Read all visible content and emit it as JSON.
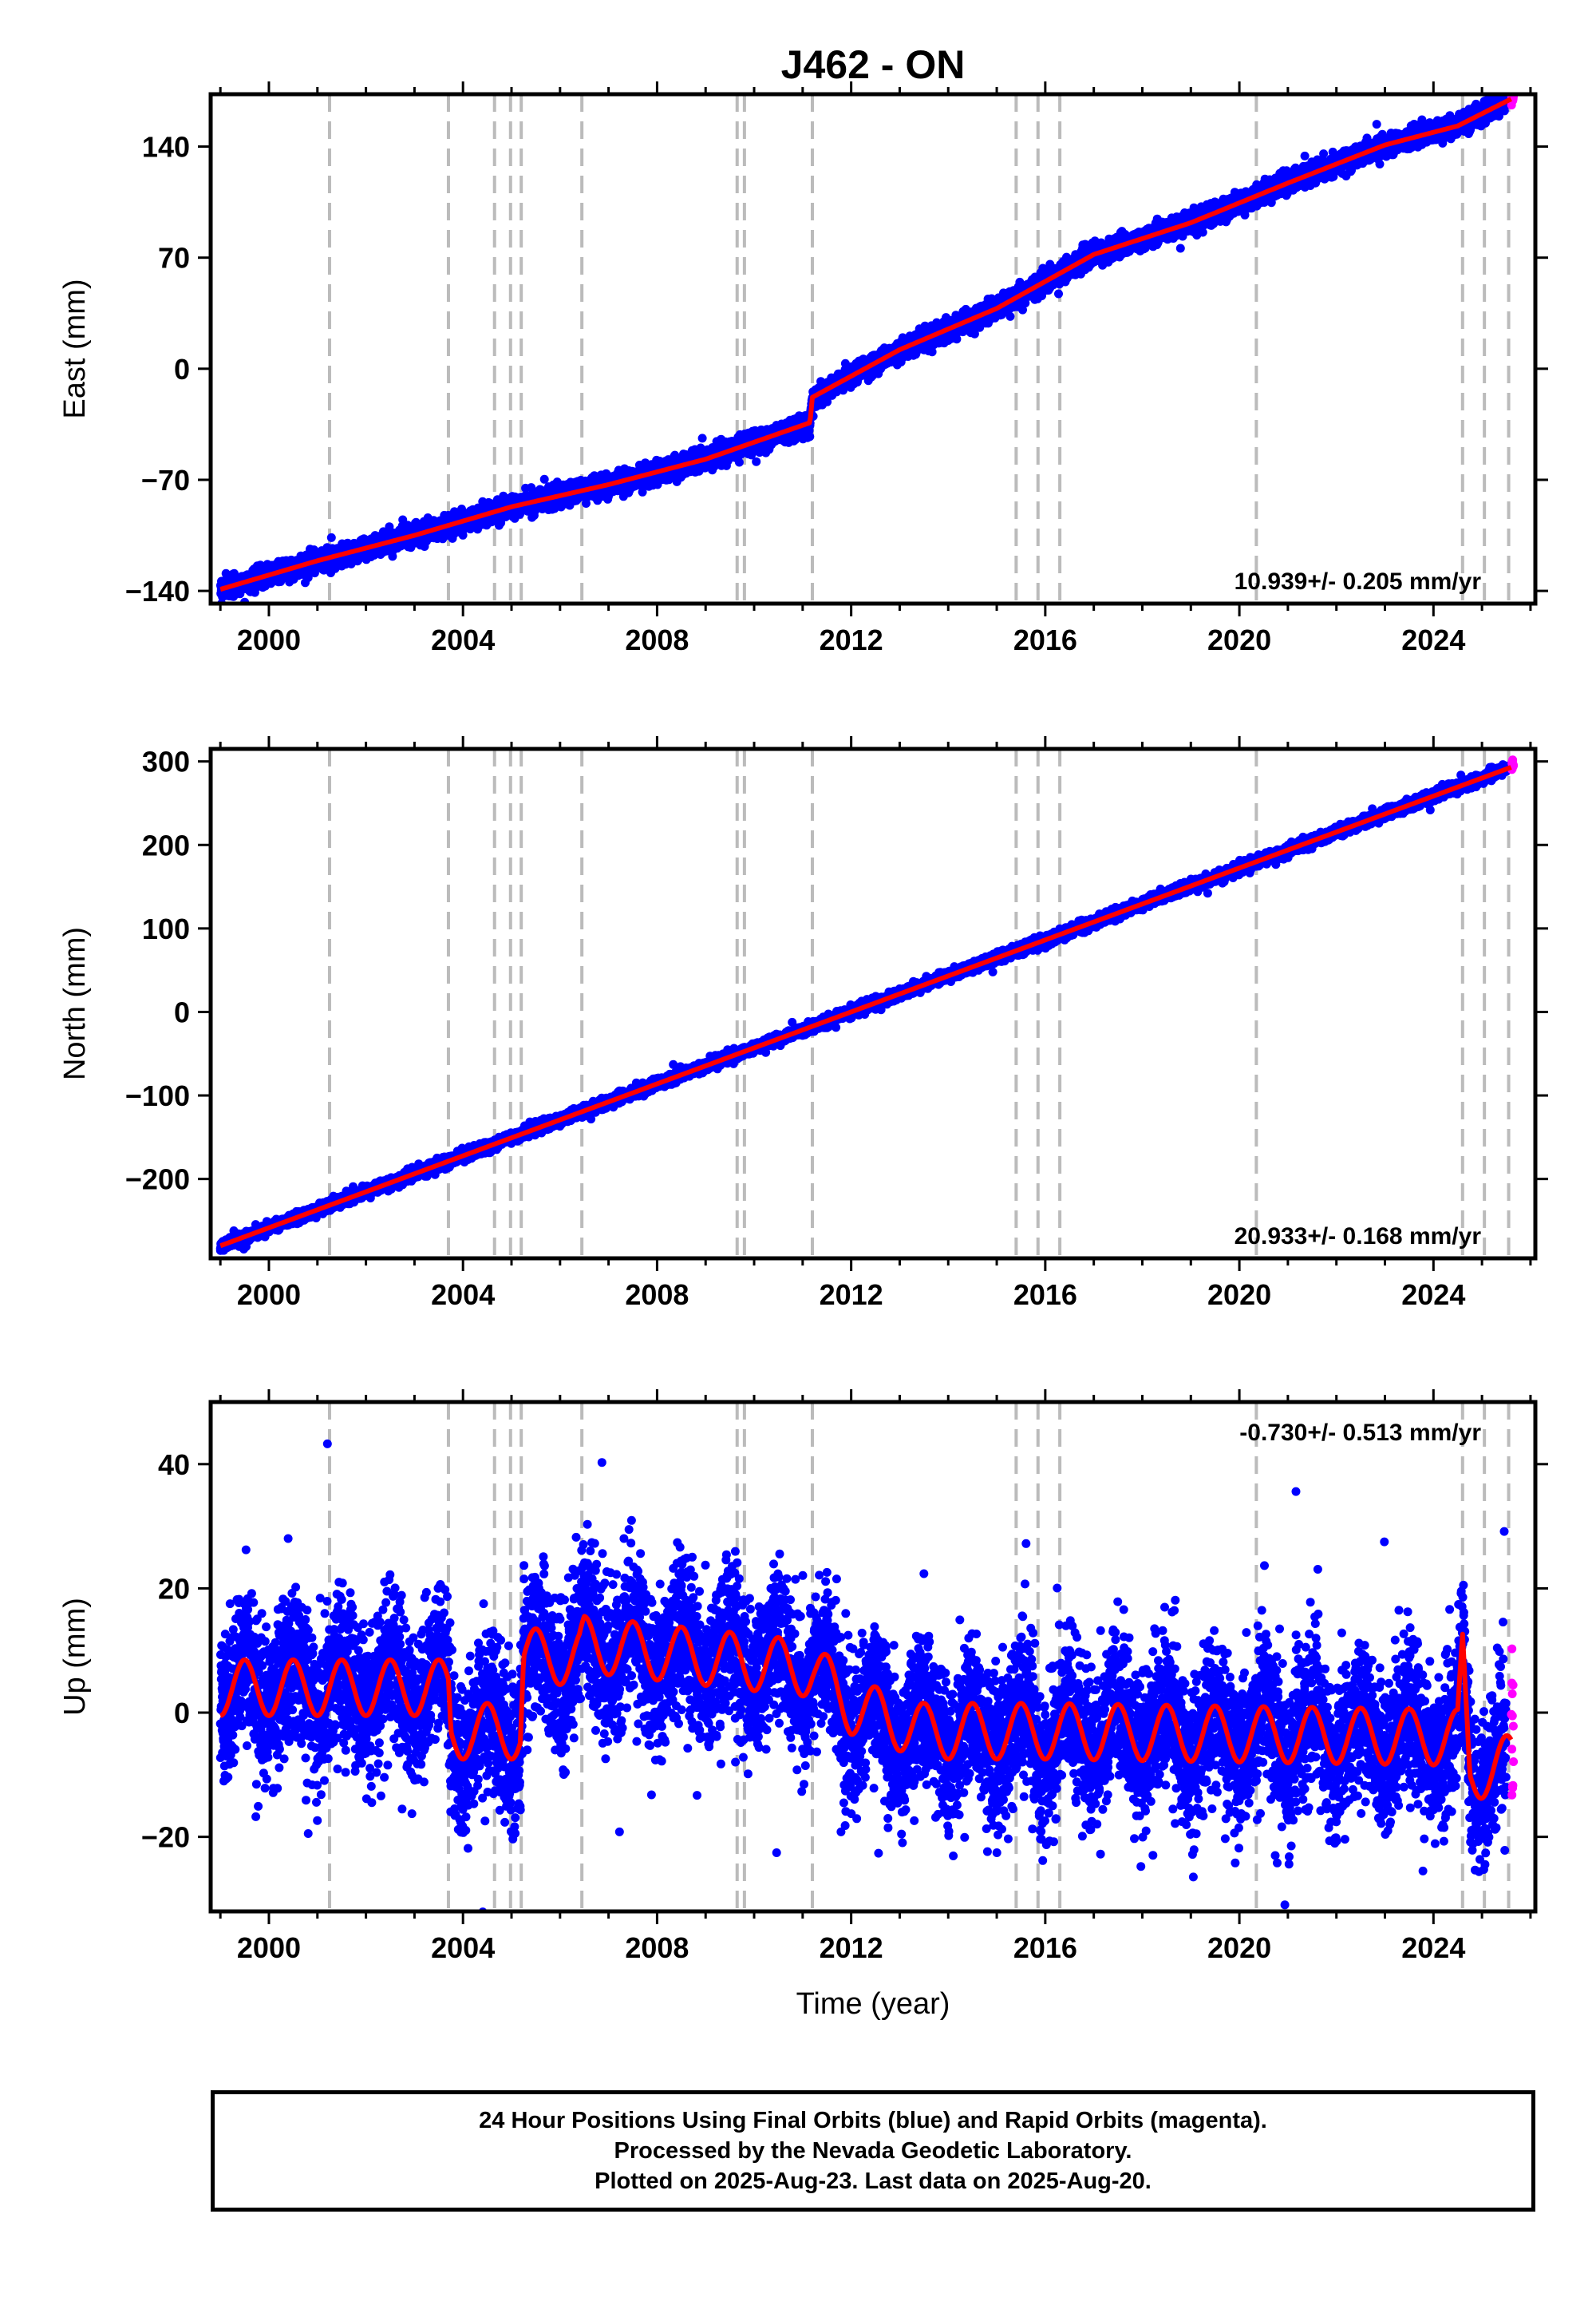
{
  "title": "J462 - ON",
  "xlabel": "Time (year)",
  "footer": {
    "line1": "24 Hour Positions Using Final Orbits (blue) and Rapid Orbits (magenta).",
    "line2": "Processed by the Nevada Geodetic Laboratory.",
    "line3": "Plotted on 2025-Aug-23. Last data on 2025-Aug-20."
  },
  "colors": {
    "final_orbits": "#0000ff",
    "rapid_orbits": "#ff00ff",
    "model": "#ff0000",
    "event_lines": "#bbbbbb"
  },
  "chart_data": [
    {
      "type": "scatter",
      "component": "East",
      "ylabel": "East (mm)",
      "xlim": [
        1998.8,
        2026.1
      ],
      "ylim": [
        -148,
        173
      ],
      "yticks": [
        -140,
        -70,
        0,
        70,
        140
      ],
      "xticks": [
        2000,
        2004,
        2008,
        2012,
        2016,
        2020,
        2024
      ],
      "rate_label": "10.939+/- 0.205 mm/yr",
      "event_lines": [
        2001.25,
        2003.7,
        2004.65,
        2004.98,
        2005.2,
        2006.45,
        2009.65,
        2009.8,
        2011.2,
        2015.4,
        2015.85,
        2016.3,
        2020.35,
        2024.6,
        2025.05,
        2025.55
      ],
      "trend": [
        [
          1999.0,
          -139
        ],
        [
          2001.0,
          -121
        ],
        [
          2003.0,
          -105
        ],
        [
          2005.0,
          -87
        ],
        [
          2007.0,
          -73
        ],
        [
          2009.0,
          -57
        ],
        [
          2011.15,
          -34
        ],
        [
          2011.2,
          -18
        ],
        [
          2013.0,
          12
        ],
        [
          2015.0,
          38
        ],
        [
          2017.0,
          72
        ],
        [
          2019.0,
          92
        ],
        [
          2021.0,
          117
        ],
        [
          2023.0,
          141
        ],
        [
          2024.5,
          153
        ],
        [
          2025.6,
          170
        ]
      ],
      "noise_mm": 3,
      "seasonal_amp_mm": 0,
      "rapid": {
        "x_range": [
          2025.5,
          2025.65
        ],
        "y_range": [
          165,
          173
        ]
      }
    },
    {
      "type": "scatter",
      "component": "North",
      "ylabel": "North (mm)",
      "xlim": [
        1998.8,
        2026.1
      ],
      "ylim": [
        -295,
        315
      ],
      "yticks": [
        -200,
        -100,
        0,
        100,
        200,
        300
      ],
      "xticks": [
        2000,
        2004,
        2008,
        2012,
        2016,
        2020,
        2024
      ],
      "rate_label": "20.933+/- 0.168 mm/yr",
      "event_lines": [
        2001.25,
        2003.7,
        2004.65,
        2004.98,
        2005.2,
        2006.45,
        2009.65,
        2009.8,
        2011.2,
        2015.4,
        2015.85,
        2016.3,
        2020.35,
        2024.6,
        2025.05,
        2025.55
      ],
      "trend": [
        [
          1999.0,
          -280
        ],
        [
          2025.6,
          293
        ]
      ],
      "noise_mm": 3,
      "seasonal_amp_mm": 0,
      "rapid": {
        "x_range": [
          2025.5,
          2025.65
        ],
        "y_range": [
          290,
          302
        ]
      }
    },
    {
      "type": "scatter",
      "component": "Up",
      "ylabel": "Up (mm)",
      "xlim": [
        1998.8,
        2026.1
      ],
      "ylim": [
        -32,
        50
      ],
      "yticks": [
        -20,
        0,
        20,
        40
      ],
      "xticks": [
        2000,
        2004,
        2008,
        2012,
        2016,
        2020,
        2024
      ],
      "rate_label": "-0.730+/- 0.513 mm/yr",
      "event_lines": [
        2001.25,
        2003.7,
        2004.65,
        2004.98,
        2005.2,
        2006.45,
        2009.65,
        2009.8,
        2011.2,
        2015.4,
        2015.85,
        2016.3,
        2020.35,
        2024.6,
        2025.05,
        2025.55
      ],
      "trend": [
        [
          1999.0,
          4
        ],
        [
          2003.7,
          4
        ],
        [
          2003.75,
          -3
        ],
        [
          2005.18,
          -3
        ],
        [
          2005.25,
          9
        ],
        [
          2006.4,
          9
        ],
        [
          2006.5,
          11
        ],
        [
          2011.2,
          7
        ],
        [
          2012.0,
          1
        ],
        [
          2013.5,
          -3
        ],
        [
          2016.0,
          -3
        ],
        [
          2024.5,
          -4
        ],
        [
          2024.6,
          9
        ],
        [
          2024.75,
          -10
        ],
        [
          2025.1,
          -9
        ],
        [
          2025.6,
          -8
        ]
      ],
      "noise_mm": 6,
      "seasonal_amp_mm": 4.5,
      "rapid": {
        "x_range": [
          2025.5,
          2025.65
        ],
        "y_range": [
          -14,
          12
        ]
      }
    }
  ]
}
